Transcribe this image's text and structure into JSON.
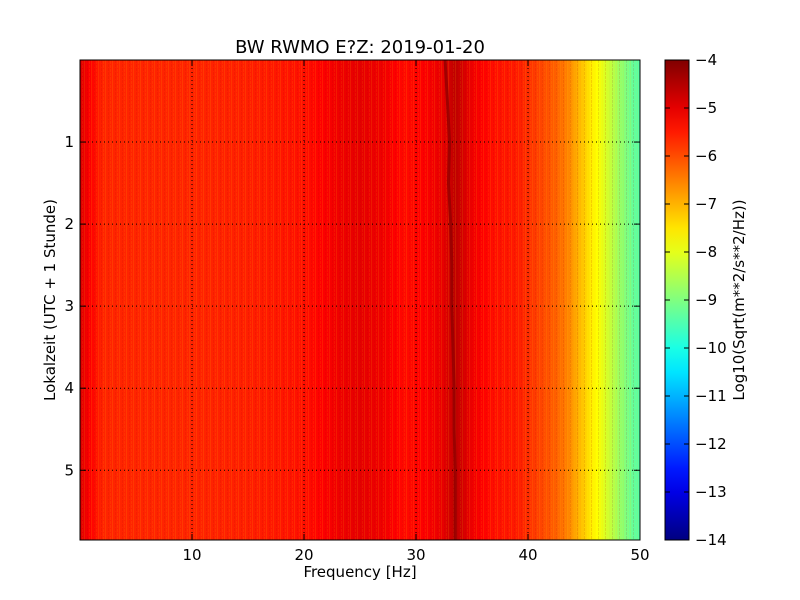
{
  "chart_data": {
    "type": "heatmap",
    "title": "BW RWMO E?Z: 2019-01-20",
    "xlabel": "Frequency [Hz]",
    "ylabel": "Lokalzeit (UTC + 1 Stunde)",
    "xlim": [
      0,
      50
    ],
    "ylim": [
      5.85,
      0
    ],
    "x_ticks": [
      10,
      20,
      30,
      40,
      50
    ],
    "y_ticks": [
      1,
      2,
      3,
      4,
      5
    ],
    "grid": true,
    "colormap": "jet",
    "colorbar": {
      "label": "Log10(Sqrt(m**2/s**2/Hz))",
      "range": [
        -14,
        -4
      ],
      "ticks": [
        -4,
        -5,
        -6,
        -7,
        -8,
        -9,
        -10,
        -11,
        -12,
        -13,
        -14
      ]
    },
    "spectrum_profile": {
      "frequencies_hz": [
        0,
        0.5,
        2,
        5,
        10,
        15,
        20,
        23,
        25,
        27,
        29,
        31,
        32.5,
        33.5,
        35,
        37,
        39,
        41,
        42.5,
        43.5,
        44.5,
        45.5,
        46.5,
        47.5,
        48.5,
        49.5,
        50
      ],
      "log_amplitude": [
        -4.9,
        -5.1,
        -5.6,
        -5.6,
        -5.6,
        -5.55,
        -5.4,
        -5.1,
        -5.0,
        -5.1,
        -5.35,
        -5.2,
        -5.0,
        -4.6,
        -5.1,
        -5.4,
        -5.5,
        -5.9,
        -6.2,
        -6.5,
        -7.0,
        -7.5,
        -7.9,
        -8.4,
        -8.9,
        -9.3,
        -9.4
      ]
    },
    "tremor_line": {
      "time_h": [
        0.0,
        0.5,
        1.0,
        1.5,
        2.0,
        2.5,
        3.0,
        3.5,
        4.0,
        4.5,
        5.0,
        5.5,
        5.85
      ],
      "frequency_hz": [
        32.6,
        32.8,
        33.0,
        32.9,
        33.1,
        33.2,
        33.2,
        33.3,
        33.4,
        33.4,
        33.5,
        33.5,
        33.5
      ]
    }
  }
}
